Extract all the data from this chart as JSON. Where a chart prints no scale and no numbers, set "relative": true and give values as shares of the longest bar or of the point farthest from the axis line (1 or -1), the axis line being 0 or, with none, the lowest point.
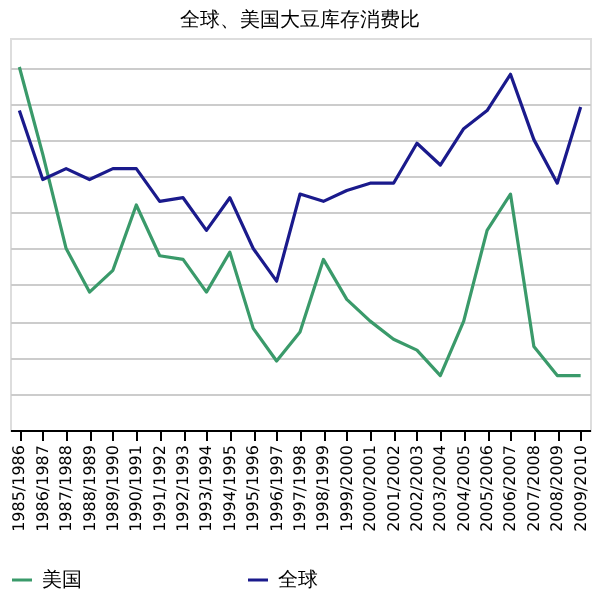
{
  "chart_data": {
    "type": "line",
    "title": "全球、美国大豆库存消费比",
    "relative": true,
    "categories": [
      "1985/1986",
      "1986/1987",
      "1987/1988",
      "1988/1989",
      "1989/1990",
      "1990/1991",
      "1991/1992",
      "1992/1993",
      "1993/1994",
      "1994/1995",
      "1995/1996",
      "1996/1997",
      "1997/1998",
      "1998/1999",
      "1999/2000",
      "2000/2001",
      "2001/2002",
      "2002/2003",
      "2003/2004",
      "2004/2005",
      "2005/2006",
      "2006/2007",
      "2007/2008",
      "2008/2009",
      "2009/2010"
    ],
    "series": [
      {
        "name": "美国",
        "color": "#3a9a6a",
        "values": [
          1.0,
          0.76,
          0.5,
          0.38,
          0.44,
          0.62,
          0.48,
          0.47,
          0.38,
          0.49,
          0.28,
          0.19,
          0.27,
          0.47,
          0.36,
          0.3,
          0.25,
          0.22,
          0.15,
          0.3,
          0.55,
          0.65,
          0.23,
          0.15,
          0.15
        ]
      },
      {
        "name": "全球",
        "color": "#1a1a8c",
        "values": [
          0.88,
          0.69,
          0.72,
          0.69,
          0.72,
          0.72,
          0.63,
          0.64,
          0.55,
          0.64,
          0.5,
          0.41,
          0.65,
          0.63,
          0.66,
          0.68,
          0.68,
          0.79,
          0.73,
          0.83,
          0.88,
          0.98,
          0.8,
          0.68,
          0.89
        ]
      }
    ],
    "grid": "y",
    "legend": "bottom",
    "line_style": "solid"
  }
}
